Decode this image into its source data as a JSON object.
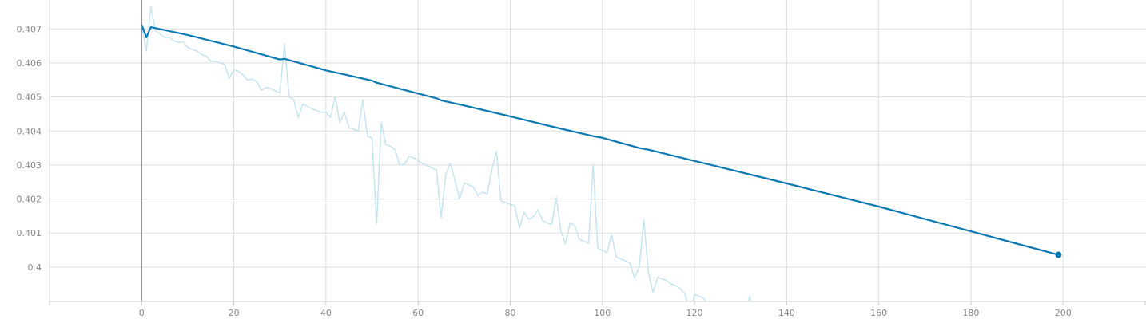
{
  "chart_data": {
    "type": "line",
    "title": "",
    "xlabel": "",
    "ylabel": "",
    "xlim": [
      -20,
      218
    ],
    "ylim": [
      0.39899,
      0.40785
    ],
    "xticks": [
      0,
      20,
      40,
      60,
      80,
      100,
      120,
      140,
      160,
      180,
      200
    ],
    "xtick_labels": [
      "0",
      "20",
      "40",
      "60",
      "80",
      "100",
      "120",
      "140",
      "160",
      "180",
      "200"
    ],
    "yticks": [
      0.4,
      0.401,
      0.402,
      0.403,
      0.404,
      0.405,
      0.406,
      0.407
    ],
    "ytick_labels": [
      "0.4",
      "0.401",
      "0.402",
      "0.403",
      "0.404",
      "0.405",
      "0.406",
      "0.407"
    ],
    "grid": true,
    "legend": "none",
    "colors": {
      "smoothed": "#0c79b3",
      "raw": "#c7e4ef",
      "grid": "#dddddd",
      "zero_axis": "#888888"
    },
    "series": [
      {
        "role": "raw",
        "x": [
          0,
          1,
          2,
          3,
          4,
          5,
          6,
          7,
          8,
          9,
          10,
          11,
          12,
          13,
          14,
          15,
          16,
          17,
          18,
          19,
          20,
          21,
          22,
          23,
          24,
          25,
          26,
          27,
          28,
          29,
          30,
          31,
          32,
          33,
          34,
          35,
          36,
          37,
          38,
          39,
          40,
          41,
          42,
          43,
          44,
          45,
          46,
          47,
          48,
          49,
          50,
          51,
          52,
          53,
          54,
          55,
          56,
          57,
          58,
          59,
          60,
          61,
          62,
          63,
          64,
          65,
          66,
          67,
          68,
          69,
          70,
          71,
          72,
          73,
          74,
          75,
          76,
          77,
          78,
          79,
          80,
          81,
          82,
          83,
          84,
          85,
          86,
          87,
          88,
          89,
          90,
          91,
          92,
          93,
          94,
          95,
          96,
          97,
          98,
          99,
          100,
          101,
          102,
          103,
          104,
          105,
          106,
          107,
          108,
          109,
          110,
          111,
          112,
          113,
          114,
          115,
          116,
          117,
          118,
          119,
          120,
          121,
          122,
          123,
          124,
          125,
          126,
          127,
          128,
          129,
          130,
          131,
          132,
          133
        ],
        "y": [
          0.4071,
          0.40635,
          0.40765,
          0.40695,
          0.40685,
          0.40675,
          0.40675,
          0.40665,
          0.4066,
          0.40662,
          0.40645,
          0.4064,
          0.40635,
          0.40625,
          0.4062,
          0.40605,
          0.40605,
          0.406,
          0.40595,
          0.40555,
          0.4058,
          0.40575,
          0.40565,
          0.4055,
          0.40552,
          0.40545,
          0.4052,
          0.40528,
          0.40525,
          0.40518,
          0.40512,
          0.40655,
          0.405,
          0.40492,
          0.4044,
          0.4048,
          0.40472,
          0.40465,
          0.4046,
          0.40455,
          0.40455,
          0.4044,
          0.40502,
          0.40425,
          0.40455,
          0.4041,
          0.40405,
          0.404,
          0.4049,
          0.40385,
          0.4038,
          0.40128,
          0.40425,
          0.4036,
          0.40355,
          0.40345,
          0.403,
          0.40302,
          0.40325,
          0.40322,
          0.40312,
          0.40305,
          0.40298,
          0.40292,
          0.40285,
          0.40145,
          0.40272,
          0.40305,
          0.40255,
          0.402,
          0.40248,
          0.40242,
          0.40235,
          0.4021,
          0.4022,
          0.40215,
          0.40285,
          0.4034,
          0.40195,
          0.4019,
          0.40185,
          0.4018,
          0.40115,
          0.40162,
          0.4014,
          0.40148,
          0.40168,
          0.40138,
          0.4013,
          0.40125,
          0.40205,
          0.40105,
          0.40068,
          0.4013,
          0.40122,
          0.40082,
          0.40076,
          0.4007,
          0.403,
          0.40055,
          0.40049,
          0.40042,
          0.40095,
          0.4003,
          0.40024,
          0.40018,
          0.40012,
          0.39968,
          0.40001,
          0.4014,
          0.39983,
          0.39925,
          0.3997,
          0.39965,
          0.3996,
          0.3995,
          0.39945,
          0.39935,
          0.3992,
          0.39855,
          0.3992,
          0.39915,
          0.39908,
          0.39885,
          0.3988,
          0.39875,
          0.3987,
          0.39865,
          0.3986,
          0.3985,
          0.39855,
          0.3985,
          0.39915,
          0.3985
        ]
      },
      {
        "role": "smoothed",
        "x": [
          0,
          1,
          2,
          10,
          20,
          30,
          31,
          40,
          50,
          51,
          60,
          64,
          65,
          70,
          80,
          90,
          98,
          100,
          108,
          110,
          120,
          140,
          160,
          180,
          199
        ],
        "y": [
          0.40712,
          0.40675,
          0.40705,
          0.40682,
          0.40648,
          0.4061,
          0.40612,
          0.40578,
          0.40548,
          0.40542,
          0.4051,
          0.40496,
          0.4049,
          0.40475,
          0.40443,
          0.4041,
          0.40385,
          0.4038,
          0.4035,
          0.40345,
          0.40312,
          0.40246,
          0.40178,
          0.40105,
          0.40036
        ]
      }
    ],
    "last_point": {
      "x": 199,
      "y": 0.40036
    }
  }
}
